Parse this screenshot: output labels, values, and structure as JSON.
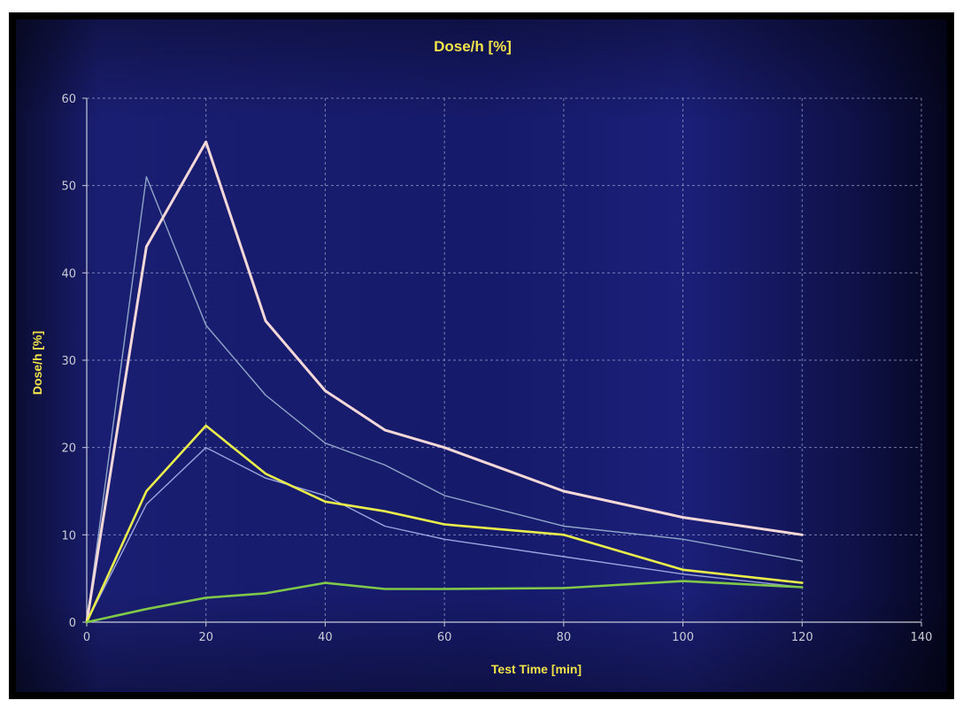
{
  "chart_data": {
    "type": "line",
    "title": "Dose/h [%]",
    "xlabel": "Test Time [min]",
    "ylabel": "Dose/h [%]",
    "xlim": [
      0,
      140
    ],
    "ylim": [
      0,
      60
    ],
    "xticks": [
      0,
      20,
      40,
      60,
      80,
      100,
      120,
      140
    ],
    "yticks": [
      0,
      10,
      20,
      30,
      40,
      50,
      60
    ],
    "grid": true,
    "series": [
      {
        "color": "#8fa6c8",
        "width": 1.4,
        "x": [
          0,
          10,
          20,
          30,
          40,
          50,
          60,
          80,
          100,
          120
        ],
        "y": [
          0,
          51,
          34,
          26,
          20.5,
          18,
          14.5,
          11,
          9.5,
          7
        ]
      },
      {
        "color": "#9aa6e0",
        "width": 1.4,
        "x": [
          0,
          10,
          20,
          30,
          40,
          50,
          60,
          80,
          100,
          120
        ],
        "y": [
          0,
          13.5,
          20,
          16.5,
          14.5,
          11,
          9.5,
          7.5,
          5.5,
          4
        ]
      },
      {
        "color": "#f4d8d8",
        "width": 3,
        "x": [
          0,
          10,
          20,
          30,
          40,
          50,
          60,
          70,
          80,
          100,
          120
        ],
        "y": [
          0,
          43,
          55,
          34.5,
          26.5,
          22,
          20,
          17.5,
          15,
          12,
          10
        ]
      },
      {
        "color": "#e9ee4a",
        "width": 2.6,
        "x": [
          0,
          10,
          20,
          30,
          40,
          50,
          60,
          80,
          100,
          120
        ],
        "y": [
          0,
          15,
          22.5,
          17,
          13.8,
          12.7,
          11.2,
          10,
          6,
          4.5
        ]
      },
      {
        "color": "#7fc84a",
        "width": 2.6,
        "x": [
          0,
          10,
          20,
          30,
          40,
          50,
          60,
          80,
          100,
          120
        ],
        "y": [
          0,
          1.5,
          2.8,
          3.3,
          4.5,
          3.8,
          3.8,
          3.9,
          4.7,
          4
        ]
      }
    ]
  }
}
